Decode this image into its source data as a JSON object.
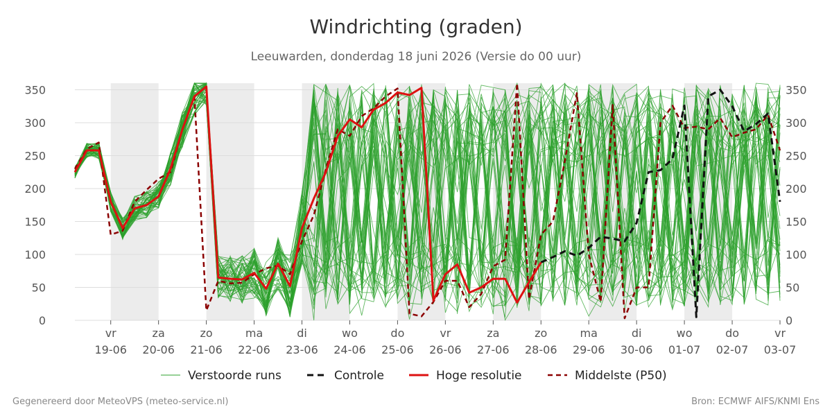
{
  "title": "Windrichting (graden)",
  "subtitle": "Leeuwarden, donderdag 18 juni 2026 (Versie do 00 uur)",
  "footer_left": "Gegenereerd door MeteoVPS (meteo-service.nl)",
  "footer_right": "Bron: ECMWF AIFS/KNMI Ens",
  "colors": {
    "ensemble": "#2ca02c",
    "controle": "#111111",
    "hoge_resolutie": "#dd1111",
    "mediaan": "#8b0000",
    "weekend_band": "#ececec",
    "grid": "#dddddd"
  },
  "chart_data": {
    "type": "line",
    "title": "Windrichting (graden)",
    "subtitle": "Leeuwarden, donderdag 18 juni 2026 (Versie do 00 uur)",
    "ylim": [
      0,
      360
    ],
    "yticks": [
      0,
      50,
      100,
      150,
      200,
      250,
      300,
      350
    ],
    "xlim": [
      -0.75,
      14
    ],
    "x_unit": "dagen vanaf 19-06",
    "x_ticks": [
      {
        "day": "vr",
        "date": "19-06"
      },
      {
        "day": "za",
        "date": "20-06"
      },
      {
        "day": "zo",
        "date": "21-06"
      },
      {
        "day": "ma",
        "date": "22-06"
      },
      {
        "day": "di",
        "date": "23-06"
      },
      {
        "day": "wo",
        "date": "24-06"
      },
      {
        "day": "do",
        "date": "25-06"
      },
      {
        "day": "vr",
        "date": "26-06"
      },
      {
        "day": "za",
        "date": "27-06"
      },
      {
        "day": "zo",
        "date": "28-06"
      },
      {
        "day": "ma",
        "date": "29-06"
      },
      {
        "day": "di",
        "date": "30-06"
      },
      {
        "day": "wo",
        "date": "01-07"
      },
      {
        "day": "do",
        "date": "02-07"
      },
      {
        "day": "vr",
        "date": "03-07"
      }
    ],
    "shaded_bands": [
      [
        0,
        1
      ],
      [
        2,
        3
      ],
      [
        4,
        5
      ],
      [
        6,
        7
      ],
      [
        8,
        9
      ],
      [
        10,
        11
      ],
      [
        12,
        13
      ]
    ],
    "grid": true,
    "legend_placement": "bottom",
    "legend": [
      "Verstoorde runs",
      "Controle",
      "Hoge resolutie",
      "Middelste (P50)"
    ],
    "series": [
      {
        "name": "Hoge resolutie",
        "style": "solid",
        "x": [
          -0.75,
          -0.5,
          -0.25,
          0,
          0.25,
          0.5,
          0.75,
          1,
          1.25,
          1.5,
          1.75,
          2,
          2.25,
          2.5,
          2.75,
          3,
          3.25,
          3.5,
          3.75,
          4,
          4.25,
          4.5,
          4.75,
          5,
          5.25,
          5.5,
          5.75,
          6,
          6.25,
          6.5,
          6.75,
          7,
          7.25,
          7.5,
          7.75,
          8,
          8.25,
          8.5,
          8.75,
          9
        ],
        "y": [
          225,
          258,
          258,
          180,
          140,
          170,
          175,
          188,
          230,
          290,
          340,
          355,
          65,
          63,
          62,
          72,
          48,
          86,
          52,
          140,
          185,
          225,
          280,
          305,
          293,
          320,
          330,
          346,
          342,
          353,
          30,
          70,
          85,
          42,
          50,
          63,
          63,
          27,
          58,
          88
        ]
      },
      {
        "name": "Controle",
        "style": "dashed",
        "x": [
          9,
          9.25,
          9.5,
          9.75,
          10,
          10.25,
          10.5,
          10.75,
          11,
          11.25,
          11.5,
          11.75,
          12,
          12.25,
          12.5,
          12.75,
          13,
          13.25,
          13.5,
          13.75,
          14
        ],
        "y": [
          88,
          96,
          105,
          98,
          110,
          127,
          124,
          120,
          148,
          225,
          228,
          245,
          326,
          5,
          340,
          350,
          325,
          287,
          298,
          314,
          180
        ]
      },
      {
        "name": "Middelste (P50)",
        "style": "dashed",
        "x": [
          -0.75,
          -0.5,
          -0.25,
          0,
          0.25,
          0.5,
          0.75,
          1,
          1.25,
          1.5,
          1.75,
          2,
          2.25,
          2.5,
          2.75,
          3,
          3.25,
          3.5,
          3.75,
          4,
          4.25,
          4.5,
          4.75,
          5,
          5.25,
          5.5,
          5.75,
          6,
          6.25,
          6.5,
          6.75,
          7,
          7.25,
          7.5,
          7.75,
          8,
          8.25,
          8.5,
          8.75,
          9,
          9.25,
          9.5,
          9.75,
          10,
          10.25,
          10.5,
          10.75,
          11,
          11.25,
          11.5,
          11.75,
          12,
          12.25,
          12.5,
          12.75,
          13,
          13.25,
          13.5,
          13.75,
          14
        ],
        "y": [
          230,
          260,
          270,
          130,
          136,
          180,
          198,
          215,
          225,
          290,
          340,
          15,
          60,
          56,
          57,
          70,
          79,
          83,
          70,
          120,
          160,
          230,
          290,
          280,
          310,
          322,
          340,
          352,
          10,
          6,
          28,
          60,
          60,
          20,
          40,
          82,
          92,
          362,
          32,
          130,
          150,
          242,
          345,
          100,
          28,
          327,
          3,
          50,
          50,
          300,
          326,
          292,
          294,
          290,
          307,
          278,
          285,
          290,
          312,
          258
        ]
      }
    ],
    "ensemble_runs": {
      "name": "Verstoorde runs",
      "count": 50,
      "y_range": [
        0,
        360
      ]
    }
  },
  "legend_items": [
    {
      "label": "Verstoorde runs",
      "key": "ensemble"
    },
    {
      "label": "Controle",
      "key": "controle"
    },
    {
      "label": "Hoge resolutie",
      "key": "hoge_resolutie"
    },
    {
      "label": "Middelste (P50)",
      "key": "mediaan"
    }
  ]
}
